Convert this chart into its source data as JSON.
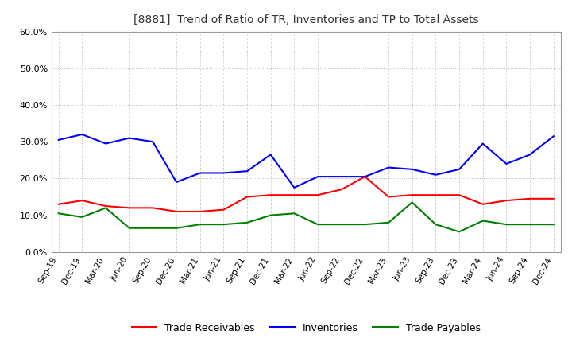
{
  "title": "[8881]  Trend of Ratio of TR, Inventories and TP to Total Assets",
  "x_labels": [
    "Sep-19",
    "Dec-19",
    "Mar-20",
    "Jun-20",
    "Sep-20",
    "Dec-20",
    "Mar-21",
    "Jun-21",
    "Sep-21",
    "Dec-21",
    "Mar-22",
    "Jun-22",
    "Sep-22",
    "Dec-22",
    "Mar-23",
    "Jun-23",
    "Sep-23",
    "Dec-23",
    "Mar-24",
    "Jun-24",
    "Sep-24",
    "Dec-24"
  ],
  "trade_receivables": [
    0.13,
    0.14,
    0.125,
    0.12,
    0.12,
    0.11,
    0.11,
    0.115,
    0.15,
    0.155,
    0.155,
    0.155,
    0.17,
    0.205,
    0.15,
    0.155,
    0.155,
    0.155,
    0.13,
    0.14,
    0.145,
    0.145
  ],
  "inventories": [
    0.305,
    0.32,
    0.295,
    0.31,
    0.3,
    0.19,
    0.215,
    0.215,
    0.22,
    0.265,
    0.175,
    0.205,
    0.205,
    0.205,
    0.23,
    0.225,
    0.21,
    0.225,
    0.295,
    0.24,
    0.265,
    0.315
  ],
  "trade_payables": [
    0.105,
    0.095,
    0.12,
    0.065,
    0.065,
    0.065,
    0.075,
    0.075,
    0.08,
    0.1,
    0.105,
    0.075,
    0.075,
    0.075,
    0.08,
    0.135,
    0.075,
    0.055,
    0.085,
    0.075,
    0.075,
    0.075
  ],
  "tr_color": "#FF0000",
  "inv_color": "#0000FF",
  "tp_color": "#008000",
  "ylim": [
    0.0,
    0.6
  ],
  "yticks": [
    0.0,
    0.1,
    0.2,
    0.3,
    0.4,
    0.5,
    0.6
  ],
  "background_color": "#FFFFFF",
  "grid_color": "#BBBBBB"
}
